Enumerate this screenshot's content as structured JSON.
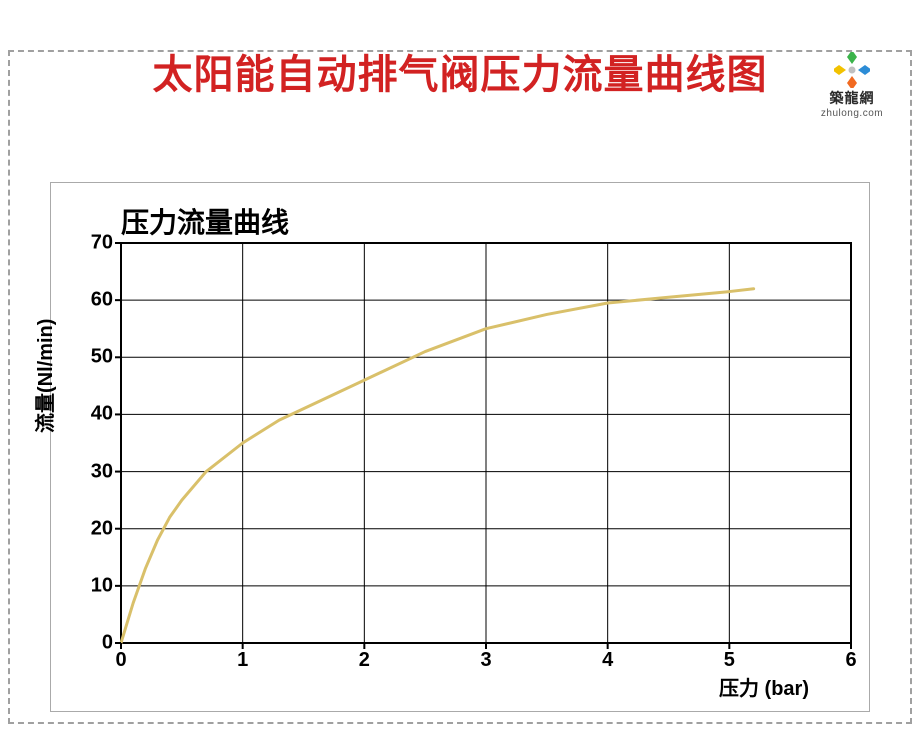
{
  "logo": {
    "brand_text": "築龍網",
    "domain_text": "zhulong.com",
    "petal_colors": [
      "#3bb34a",
      "#2c8cd6",
      "#f16a21",
      "#f2c200"
    ],
    "center_color": "#c0c0c0"
  },
  "page_title": "太阳能自动排气阀压力流量曲线图",
  "chart": {
    "type": "line",
    "subtitle": "压力流量曲线",
    "xlabel": "压力 (bar)",
    "ylabel": "流量(Nl/min)",
    "xlim": [
      0,
      6
    ],
    "ylim": [
      0,
      70
    ],
    "xticks": [
      0,
      1,
      2,
      3,
      4,
      5,
      6
    ],
    "yticks": [
      0,
      10,
      20,
      30,
      40,
      50,
      60,
      70
    ],
    "grid_color": "#000000",
    "border_color": "#000000",
    "border_width": 2,
    "grid_width": 1,
    "background_color": "#ffffff",
    "line_color": "#d9c06a",
    "line_width": 3,
    "tick_fontsize": 20,
    "subtitle_fontsize": 28,
    "label_fontsize": 20,
    "series": {
      "x": [
        0,
        0.1,
        0.2,
        0.3,
        0.4,
        0.5,
        0.7,
        1.0,
        1.3,
        1.6,
        2.0,
        2.5,
        3.0,
        3.5,
        4.0,
        4.5,
        5.0,
        5.2
      ],
      "y": [
        0,
        7,
        13,
        18,
        22,
        25,
        30,
        35,
        39,
        42,
        46,
        51,
        55,
        57.5,
        59.5,
        60.5,
        61.5,
        62
      ]
    }
  }
}
